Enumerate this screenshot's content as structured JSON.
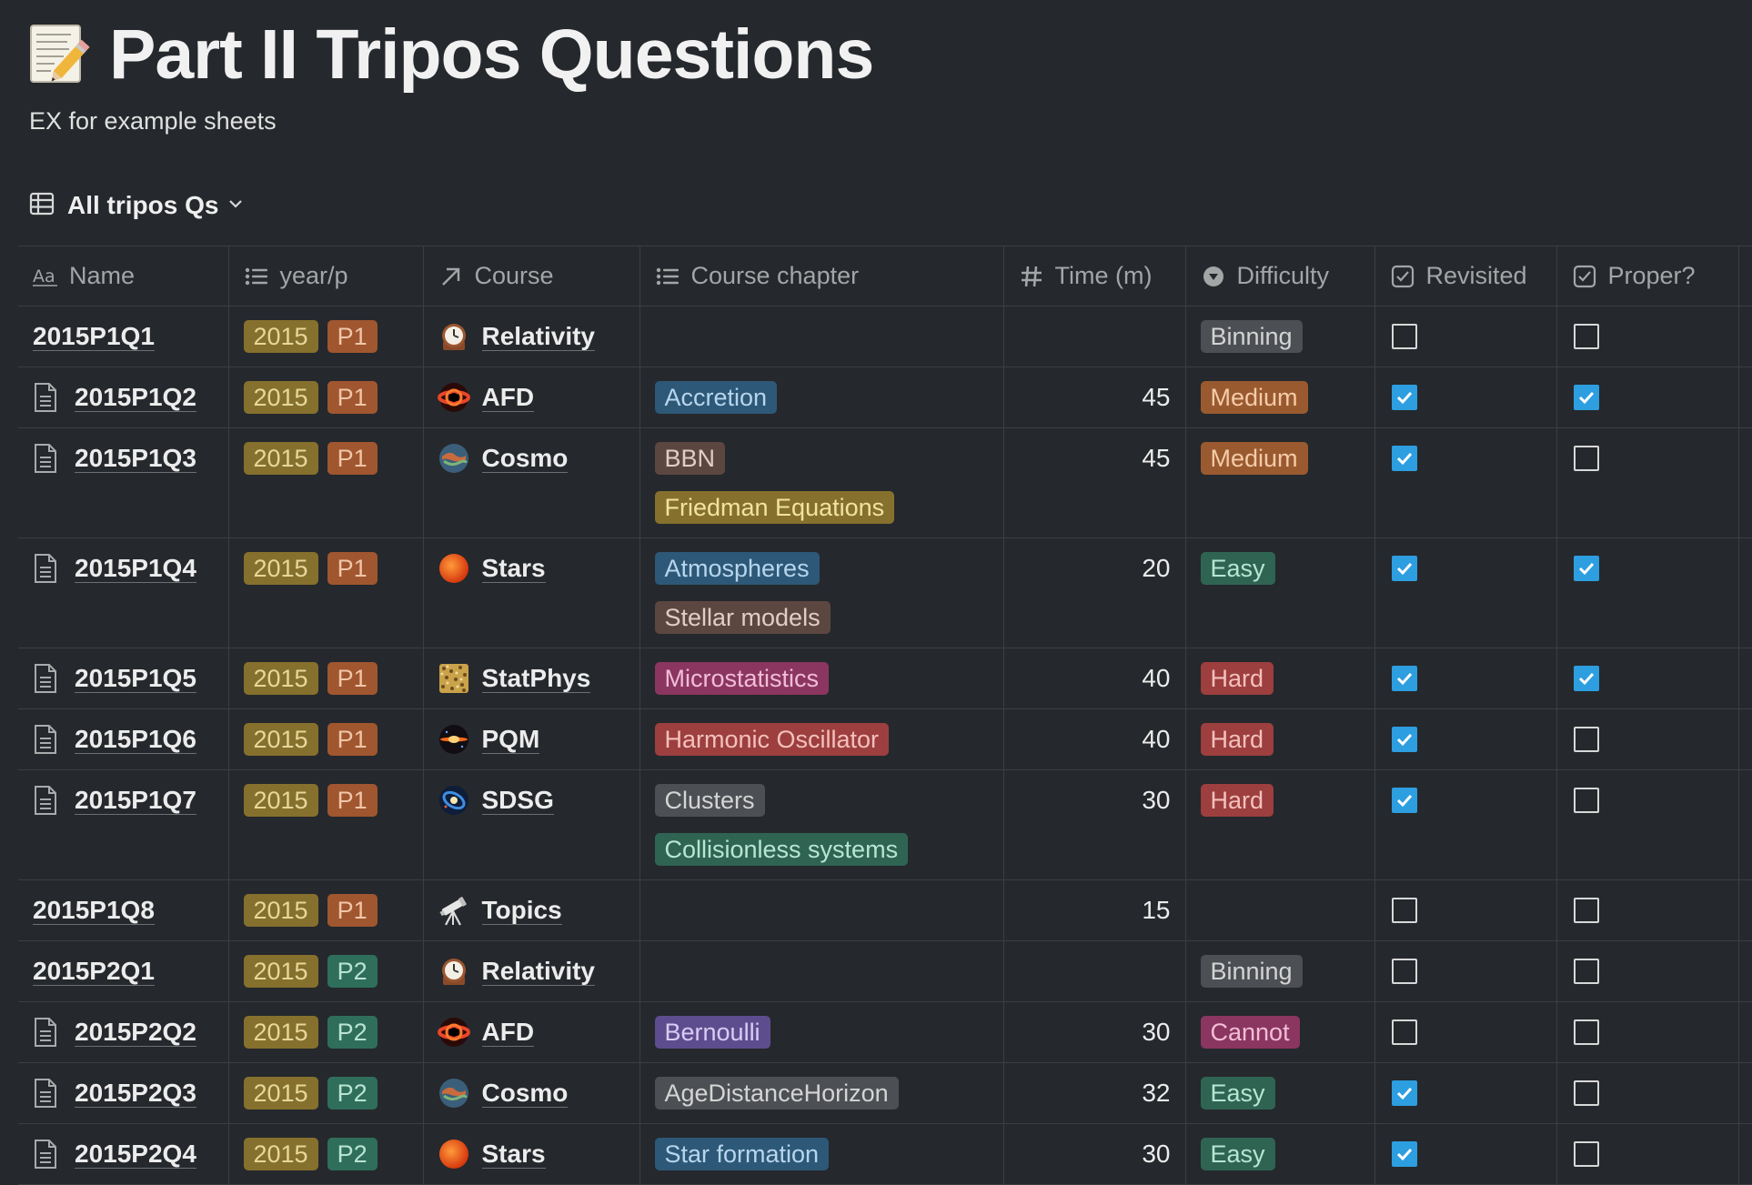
{
  "page": {
    "title": "Part II Tripos Questions",
    "description": "EX for example sheets",
    "icon": "memo-icon"
  },
  "view": {
    "label": "All tripos Qs",
    "icon": "table-icon"
  },
  "columns": [
    {
      "key": "name",
      "label": "Name",
      "icon": "text-aa-icon"
    },
    {
      "key": "yearp",
      "label": "year/p",
      "icon": "list-icon"
    },
    {
      "key": "course",
      "label": "Course",
      "icon": "relation-arrow-icon"
    },
    {
      "key": "chapter",
      "label": "Course chapter",
      "icon": "list-icon"
    },
    {
      "key": "time",
      "label": "Time (m)",
      "icon": "hash-icon"
    },
    {
      "key": "difficulty",
      "label": "Difficulty",
      "icon": "status-icon"
    },
    {
      "key": "revisited",
      "label": "Revisited",
      "icon": "checkbox-icon"
    },
    {
      "key": "proper",
      "label": "Proper?",
      "icon": "checkbox-icon"
    }
  ],
  "colors": {
    "year": {
      "bg": "#86702d",
      "fg": "#e6d89a"
    },
    "P1": {
      "bg": "#a0562f",
      "fg": "#f0c6a8"
    },
    "P2": {
      "bg": "#2f6e5a",
      "fg": "#b8e4d2"
    },
    "blue": {
      "bg": "#2e5877",
      "fg": "#b7d6ee"
    },
    "brown": {
      "bg": "#5c4740",
      "fg": "#e1cdc5"
    },
    "yellow": {
      "bg": "#86702d",
      "fg": "#f1e3a2"
    },
    "pink": {
      "bg": "#8a3660",
      "fg": "#f2bdd6"
    },
    "red": {
      "bg": "#9c3f3e",
      "fg": "#f4c0bd"
    },
    "gray": {
      "bg": "#4c4f53",
      "fg": "#d4d4d4"
    },
    "green": {
      "bg": "#2f6453",
      "fg": "#b8e6d3"
    },
    "purple": {
      "bg": "#5e4d8e",
      "fg": "#d8ccf4"
    },
    "orange": {
      "bg": "#9a5a30",
      "fg": "#f4cba8"
    }
  },
  "difficulty_colors": {
    "Binning": "gray",
    "Medium": "orange",
    "Easy": "green",
    "Hard": "red",
    "Cannot": "pink"
  },
  "rows": [
    {
      "name": "2015P1Q1",
      "doc": false,
      "year": "2015",
      "paper": "P1",
      "course": "Relativity",
      "course_icon": "clock-icon",
      "chapters": [],
      "time": "",
      "difficulty": "Binning",
      "revisited": false,
      "proper": false
    },
    {
      "name": "2015P1Q2",
      "doc": true,
      "year": "2015",
      "paper": "P1",
      "course": "AFD",
      "course_icon": "black-hole-icon",
      "chapters": [
        {
          "label": "Accretion",
          "color": "blue"
        }
      ],
      "time": "45",
      "difficulty": "Medium",
      "revisited": true,
      "proper": true
    },
    {
      "name": "2015P1Q3",
      "doc": true,
      "year": "2015",
      "paper": "P1",
      "course": "Cosmo",
      "course_icon": "earth-icon",
      "chapters": [
        {
          "label": "BBN",
          "color": "brown"
        },
        {
          "label": "Friedman Equations",
          "color": "yellow"
        }
      ],
      "time": "45",
      "difficulty": "Medium",
      "revisited": true,
      "proper": false
    },
    {
      "name": "2015P1Q4",
      "doc": true,
      "year": "2015",
      "paper": "P1",
      "course": "Stars",
      "course_icon": "sun-icon",
      "chapters": [
        {
          "label": "Atmospheres",
          "color": "blue"
        },
        {
          "label": "Stellar models",
          "color": "brown"
        }
      ],
      "time": "20",
      "difficulty": "Easy",
      "revisited": true,
      "proper": true
    },
    {
      "name": "2015P1Q5",
      "doc": true,
      "year": "2015",
      "paper": "P1",
      "course": "StatPhys",
      "course_icon": "particles-icon",
      "chapters": [
        {
          "label": "Microstatistics",
          "color": "pink"
        }
      ],
      "time": "40",
      "difficulty": "Hard",
      "revisited": true,
      "proper": true
    },
    {
      "name": "2015P1Q6",
      "doc": true,
      "year": "2015",
      "paper": "P1",
      "course": "PQM",
      "course_icon": "quantum-icon",
      "chapters": [
        {
          "label": "Harmonic Oscillator",
          "color": "red"
        }
      ],
      "time": "40",
      "difficulty": "Hard",
      "revisited": true,
      "proper": false
    },
    {
      "name": "2015P1Q7",
      "doc": true,
      "year": "2015",
      "paper": "P1",
      "course": "SDSG",
      "course_icon": "galaxy-icon",
      "chapters": [
        {
          "label": "Clusters",
          "color": "gray"
        },
        {
          "label": "Collisionless systems",
          "color": "green"
        }
      ],
      "time": "30",
      "difficulty": "Hard",
      "revisited": true,
      "proper": false
    },
    {
      "name": "2015P1Q8",
      "doc": false,
      "year": "2015",
      "paper": "P1",
      "course": "Topics",
      "course_icon": "telescope-icon",
      "chapters": [],
      "time": "15",
      "difficulty": "",
      "revisited": false,
      "proper": false
    },
    {
      "name": "2015P2Q1",
      "doc": false,
      "year": "2015",
      "paper": "P2",
      "course": "Relativity",
      "course_icon": "clock-icon",
      "chapters": [],
      "time": "",
      "difficulty": "Binning",
      "revisited": false,
      "proper": false
    },
    {
      "name": "2015P2Q2",
      "doc": true,
      "year": "2015",
      "paper": "P2",
      "course": "AFD",
      "course_icon": "black-hole-icon",
      "chapters": [
        {
          "label": "Bernoulli",
          "color": "purple"
        }
      ],
      "time": "30",
      "difficulty": "Cannot",
      "revisited": false,
      "proper": false
    },
    {
      "name": "2015P2Q3",
      "doc": true,
      "year": "2015",
      "paper": "P2",
      "course": "Cosmo",
      "course_icon": "earth-icon",
      "chapters": [
        {
          "label": "AgeDistanceHorizon",
          "color": "gray"
        }
      ],
      "time": "32",
      "difficulty": "Easy",
      "revisited": true,
      "proper": false
    },
    {
      "name": "2015P2Q4",
      "doc": true,
      "year": "2015",
      "paper": "P2",
      "course": "Stars",
      "course_icon": "sun-icon",
      "chapters": [
        {
          "label": "Star formation",
          "color": "blue"
        }
      ],
      "time": "30",
      "difficulty": "Easy",
      "revisited": true,
      "proper": false
    }
  ]
}
